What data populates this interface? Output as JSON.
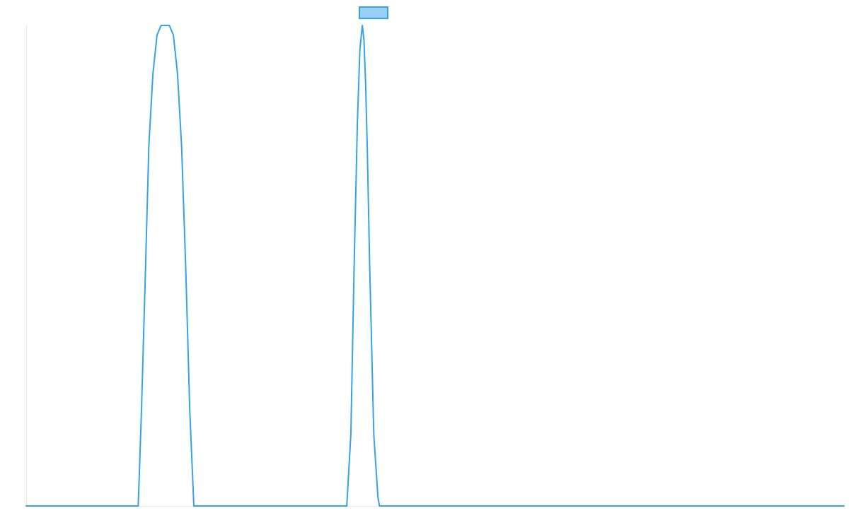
{
  "chart_data": {
    "type": "line",
    "title": "",
    "xlabel": "",
    "ylabel": "",
    "grid": false,
    "legend": "top-center",
    "xlim": [
      0,
      1000
    ],
    "ylim": [
      0,
      1
    ],
    "series": [
      {
        "color": "#36a2eb",
        "fill_color": "#9ad0f5",
        "x": [
          0,
          137,
          141,
          146,
          150,
          155,
          160,
          165,
          175,
          180,
          185,
          190,
          195,
          200,
          205,
          392,
          397,
          401,
          405,
          408,
          411,
          413,
          415,
          417,
          420,
          425,
          430,
          432,
          1000
        ],
        "y": [
          0,
          0,
          0.2,
          0.5,
          0.75,
          0.9,
          0.98,
          1,
          1,
          0.98,
          0.9,
          0.75,
          0.5,
          0.2,
          0,
          0,
          0.15,
          0.5,
          0.8,
          0.95,
          1,
          0.97,
          0.88,
          0.75,
          0.5,
          0.15,
          0.02,
          0,
          0
        ]
      }
    ]
  }
}
